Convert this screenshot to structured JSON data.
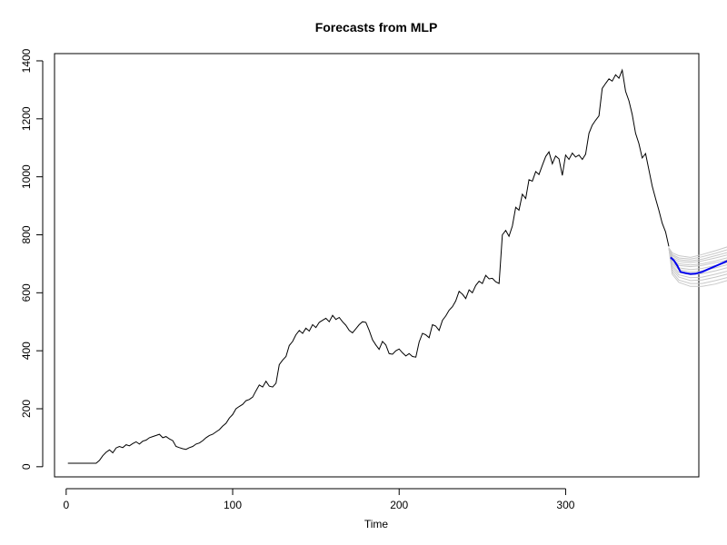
{
  "chart_data": {
    "type": "line",
    "title": "Forecasts from MLP",
    "xlabel": "Time",
    "ylabel": "",
    "xlim": [
      -7,
      380
    ],
    "ylim": [
      -35,
      1425
    ],
    "x_ticks": [
      0,
      100,
      200,
      300
    ],
    "y_ticks": [
      0,
      200,
      400,
      600,
      800,
      1000,
      1200,
      1400
    ],
    "colors": {
      "actual": "#000000",
      "ensemble": "#c8c8c8",
      "forecast": "#0000ee",
      "frame": "#000000"
    },
    "series": [
      {
        "role": "actual",
        "points": [
          [
            1,
            12
          ],
          [
            10,
            12
          ],
          [
            18,
            12
          ],
          [
            20,
            22
          ],
          [
            22,
            38
          ],
          [
            24,
            50
          ],
          [
            26,
            58
          ],
          [
            28,
            48
          ],
          [
            30,
            65
          ],
          [
            32,
            70
          ],
          [
            34,
            66
          ],
          [
            36,
            76
          ],
          [
            38,
            72
          ],
          [
            40,
            80
          ],
          [
            42,
            86
          ],
          [
            44,
            78
          ],
          [
            46,
            88
          ],
          [
            48,
            92
          ],
          [
            50,
            100
          ],
          [
            52,
            104
          ],
          [
            54,
            108
          ],
          [
            56,
            112
          ],
          [
            58,
            100
          ],
          [
            60,
            104
          ],
          [
            62,
            96
          ],
          [
            64,
            90
          ],
          [
            66,
            70
          ],
          [
            68,
            66
          ],
          [
            70,
            62
          ],
          [
            72,
            60
          ],
          [
            74,
            66
          ],
          [
            76,
            70
          ],
          [
            78,
            78
          ],
          [
            80,
            82
          ],
          [
            82,
            90
          ],
          [
            84,
            100
          ],
          [
            86,
            108
          ],
          [
            88,
            112
          ],
          [
            90,
            120
          ],
          [
            92,
            128
          ],
          [
            94,
            140
          ],
          [
            96,
            150
          ],
          [
            98,
            168
          ],
          [
            100,
            180
          ],
          [
            102,
            200
          ],
          [
            104,
            208
          ],
          [
            106,
            215
          ],
          [
            108,
            228
          ],
          [
            110,
            232
          ],
          [
            112,
            240
          ],
          [
            114,
            262
          ],
          [
            116,
            282
          ],
          [
            118,
            275
          ],
          [
            120,
            295
          ],
          [
            122,
            278
          ],
          [
            124,
            275
          ],
          [
            126,
            288
          ],
          [
            128,
            352
          ],
          [
            130,
            368
          ],
          [
            132,
            380
          ],
          [
            134,
            418
          ],
          [
            136,
            432
          ],
          [
            138,
            455
          ],
          [
            140,
            470
          ],
          [
            142,
            460
          ],
          [
            144,
            478
          ],
          [
            146,
            468
          ],
          [
            148,
            490
          ],
          [
            150,
            480
          ],
          [
            152,
            498
          ],
          [
            154,
            505
          ],
          [
            156,
            512
          ],
          [
            158,
            500
          ],
          [
            160,
            522
          ],
          [
            162,
            508
          ],
          [
            164,
            515
          ],
          [
            166,
            500
          ],
          [
            168,
            488
          ],
          [
            170,
            470
          ],
          [
            172,
            462
          ],
          [
            174,
            476
          ],
          [
            176,
            490
          ],
          [
            178,
            500
          ],
          [
            180,
            498
          ],
          [
            182,
            470
          ],
          [
            184,
            438
          ],
          [
            186,
            420
          ],
          [
            188,
            405
          ],
          [
            190,
            432
          ],
          [
            192,
            420
          ],
          [
            194,
            390
          ],
          [
            196,
            388
          ],
          [
            198,
            400
          ],
          [
            200,
            406
          ],
          [
            202,
            393
          ],
          [
            204,
            382
          ],
          [
            206,
            390
          ],
          [
            208,
            380
          ],
          [
            210,
            378
          ],
          [
            212,
            430
          ],
          [
            214,
            460
          ],
          [
            216,
            455
          ],
          [
            218,
            445
          ],
          [
            220,
            490
          ],
          [
            222,
            485
          ],
          [
            224,
            470
          ],
          [
            226,
            505
          ],
          [
            228,
            520
          ],
          [
            230,
            540
          ],
          [
            232,
            552
          ],
          [
            234,
            572
          ],
          [
            236,
            605
          ],
          [
            238,
            595
          ],
          [
            240,
            580
          ],
          [
            242,
            610
          ],
          [
            244,
            600
          ],
          [
            246,
            625
          ],
          [
            248,
            640
          ],
          [
            250,
            632
          ],
          [
            252,
            660
          ],
          [
            254,
            648
          ],
          [
            256,
            650
          ],
          [
            258,
            638
          ],
          [
            260,
            632
          ],
          [
            262,
            800
          ],
          [
            264,
            815
          ],
          [
            266,
            795
          ],
          [
            268,
            830
          ],
          [
            270,
            895
          ],
          [
            272,
            885
          ],
          [
            274,
            940
          ],
          [
            276,
            925
          ],
          [
            278,
            990
          ],
          [
            280,
            985
          ],
          [
            282,
            1018
          ],
          [
            284,
            1008
          ],
          [
            286,
            1040
          ],
          [
            288,
            1070
          ],
          [
            290,
            1086
          ],
          [
            292,
            1045
          ],
          [
            294,
            1072
          ],
          [
            296,
            1062
          ],
          [
            298,
            1005
          ],
          [
            300,
            1075
          ],
          [
            302,
            1060
          ],
          [
            304,
            1082
          ],
          [
            306,
            1068
          ],
          [
            308,
            1075
          ],
          [
            310,
            1060
          ],
          [
            312,
            1078
          ],
          [
            314,
            1150
          ],
          [
            316,
            1178
          ],
          [
            318,
            1195
          ],
          [
            320,
            1210
          ],
          [
            322,
            1305
          ],
          [
            324,
            1322
          ],
          [
            326,
            1338
          ],
          [
            328,
            1330
          ],
          [
            330,
            1352
          ],
          [
            332,
            1340
          ],
          [
            334,
            1368
          ],
          [
            336,
            1295
          ],
          [
            338,
            1262
          ],
          [
            340,
            1215
          ],
          [
            342,
            1150
          ],
          [
            344,
            1115
          ],
          [
            346,
            1065
          ],
          [
            348,
            1080
          ],
          [
            350,
            1025
          ],
          [
            352,
            968
          ],
          [
            354,
            925
          ],
          [
            356,
            885
          ],
          [
            358,
            840
          ],
          [
            360,
            810
          ],
          [
            362,
            760
          ]
        ]
      },
      {
        "role": "ensemble",
        "lines": [
          [
            [
              362,
              755
            ],
            [
              364,
              738
            ],
            [
              368,
              728
            ],
            [
              375,
              722
            ],
            [
              382,
              732
            ],
            [
              390,
              745
            ],
            [
              398,
              760
            ],
            [
              406,
              778
            ]
          ],
          [
            [
              362,
              755
            ],
            [
              364,
              732
            ],
            [
              368,
              720
            ],
            [
              375,
              716
            ],
            [
              382,
              724
            ],
            [
              390,
              736
            ],
            [
              398,
              750
            ],
            [
              406,
              766
            ]
          ],
          [
            [
              362,
              755
            ],
            [
              364,
              728
            ],
            [
              368,
              714
            ],
            [
              375,
              710
            ],
            [
              382,
              716
            ],
            [
              390,
              728
            ],
            [
              398,
              740
            ],
            [
              406,
              752
            ]
          ],
          [
            [
              362,
              755
            ],
            [
              364,
              722
            ],
            [
              368,
              708
            ],
            [
              375,
              704
            ],
            [
              382,
              710
            ],
            [
              390,
              720
            ],
            [
              398,
              732
            ],
            [
              406,
              742
            ]
          ],
          [
            [
              362,
              755
            ],
            [
              364,
              716
            ],
            [
              368,
              700
            ],
            [
              375,
              696
            ],
            [
              382,
              700
            ],
            [
              390,
              710
            ],
            [
              398,
              722
            ],
            [
              406,
              732
            ]
          ],
          [
            [
              362,
              755
            ],
            [
              364,
              712
            ],
            [
              368,
              694
            ],
            [
              375,
              690
            ],
            [
              382,
              694
            ],
            [
              390,
              704
            ],
            [
              398,
              714
            ],
            [
              406,
              724
            ]
          ],
          [
            [
              362,
              755
            ],
            [
              364,
              706
            ],
            [
              368,
              686
            ],
            [
              375,
              680
            ],
            [
              382,
              684
            ],
            [
              390,
              694
            ],
            [
              398,
              706
            ],
            [
              406,
              716
            ]
          ],
          [
            [
              362,
              755
            ],
            [
              364,
              700
            ],
            [
              368,
              680
            ],
            [
              375,
              672
            ],
            [
              382,
              676
            ],
            [
              390,
              686
            ],
            [
              398,
              698
            ],
            [
              406,
              708
            ]
          ],
          [
            [
              362,
              755
            ],
            [
              364,
              694
            ],
            [
              368,
              670
            ],
            [
              375,
              662
            ],
            [
              382,
              666
            ],
            [
              390,
              676
            ],
            [
              398,
              688
            ],
            [
              406,
              700
            ]
          ],
          [
            [
              362,
              755
            ],
            [
              364,
              688
            ],
            [
              368,
              662
            ],
            [
              375,
              652
            ],
            [
              382,
              654
            ],
            [
              390,
              664
            ],
            [
              398,
              676
            ],
            [
              406,
              690
            ]
          ],
          [
            [
              362,
              755
            ],
            [
              364,
              680
            ],
            [
              368,
              654
            ],
            [
              375,
              642
            ],
            [
              382,
              644
            ],
            [
              390,
              654
            ],
            [
              398,
              666
            ],
            [
              406,
              680
            ]
          ],
          [
            [
              362,
              755
            ],
            [
              364,
              672
            ],
            [
              368,
              644
            ],
            [
              375,
              632
            ],
            [
              382,
              632
            ],
            [
              390,
              642
            ],
            [
              398,
              654
            ],
            [
              406,
              668
            ]
          ],
          [
            [
              362,
              755
            ],
            [
              364,
              664
            ],
            [
              368,
              636
            ],
            [
              375,
              622
            ],
            [
              382,
              622
            ],
            [
              390,
              630
            ],
            [
              398,
              644
            ],
            [
              406,
              658
            ]
          ]
        ]
      },
      {
        "role": "forecast",
        "points": [
          [
            363,
            722
          ],
          [
            365,
            712
          ],
          [
            367,
            694
          ],
          [
            369,
            672
          ],
          [
            372,
            668
          ],
          [
            375,
            665
          ],
          [
            378,
            666
          ],
          [
            382,
            672
          ],
          [
            386,
            682
          ],
          [
            390,
            692
          ],
          [
            394,
            702
          ],
          [
            398,
            712
          ],
          [
            402,
            722
          ],
          [
            406,
            735
          ]
        ]
      }
    ]
  }
}
